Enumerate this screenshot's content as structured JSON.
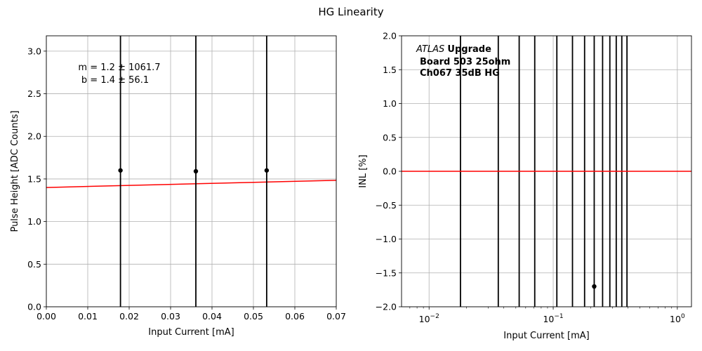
{
  "figure": {
    "title": "HG Linearity"
  },
  "chart_data": [
    {
      "type": "scatter",
      "title": "",
      "xlabel": "Input Current [mA]",
      "ylabel": "Pulse Height [ADC Counts]",
      "xlim": [
        0.0,
        0.07
      ],
      "ylim": [
        0.0,
        3.18
      ],
      "grid": true,
      "x_ticks": [
        0.0,
        0.01,
        0.02,
        0.03,
        0.04,
        0.05,
        0.06,
        0.07
      ],
      "x_tick_labels": [
        "0.00",
        "0.01",
        "0.02",
        "0.03",
        "0.04",
        "0.05",
        "0.06",
        "0.07"
      ],
      "y_ticks": [
        0.0,
        0.5,
        1.0,
        1.5,
        2.0,
        2.5,
        3.0
      ],
      "y_tick_labels": [
        "0.0",
        "0.5",
        "1.0",
        "1.5",
        "2.0",
        "2.5",
        "3.0"
      ],
      "points": [
        {
          "x": 0.0179,
          "y": 1.6
        },
        {
          "x": 0.0361,
          "y": 1.59
        },
        {
          "x": 0.0532,
          "y": 1.6
        }
      ],
      "error_bars": "extend beyond axis range",
      "fit": {
        "slope": 1.2,
        "intercept": 1.4,
        "color": "#ff0000"
      },
      "annotation": {
        "line1": "m = 1.2 ± 1061.7",
        "line2": "b = 1.4 ± 56.1"
      }
    },
    {
      "type": "scatter",
      "title": "",
      "xlabel": "Input Current [mA]",
      "ylabel": "INL [%]",
      "xscale": "log",
      "xlim": [
        0.006,
        1.3
      ],
      "ylim": [
        -2.0,
        2.0
      ],
      "grid": true,
      "x_ticks": [
        0.01,
        0.1,
        1.0
      ],
      "x_tick_labels": [
        {
          "base": "10",
          "exp": "−2"
        },
        {
          "base": "10",
          "exp": "−1"
        },
        {
          "base": "10",
          "exp": "0"
        }
      ],
      "y_ticks": [
        -2.0,
        -1.5,
        -1.0,
        -0.5,
        0.0,
        0.5,
        1.0,
        1.5,
        2.0
      ],
      "y_tick_labels": [
        "−2.0",
        "−1.5",
        "−1.0",
        "−0.5",
        "0.0",
        "0.5",
        "1.0",
        "1.5",
        "2.0"
      ],
      "points": [
        {
          "x": 0.0179,
          "y": null
        },
        {
          "x": 0.0361,
          "y": null
        },
        {
          "x": 0.0532,
          "y": null
        },
        {
          "x": 0.071,
          "y": null
        },
        {
          "x": 0.107,
          "y": null
        },
        {
          "x": 0.143,
          "y": null
        },
        {
          "x": 0.179,
          "y": null
        },
        {
          "x": 0.214,
          "y": -1.7
        },
        {
          "x": 0.25,
          "y": null
        },
        {
          "x": 0.286,
          "y": null
        },
        {
          "x": 0.322,
          "y": null
        },
        {
          "x": 0.357,
          "y": null
        },
        {
          "x": 0.393,
          "y": null
        }
      ],
      "error_bars": "extend beyond axis range",
      "reference_line": {
        "y": 0.0,
        "color": "#ff0000"
      },
      "annotation": {
        "atlas": "ATLAS",
        "upgrade": "Upgrade",
        "line2": "Board 503 25ohm",
        "line3": "Ch067 35dB HG"
      }
    }
  ]
}
